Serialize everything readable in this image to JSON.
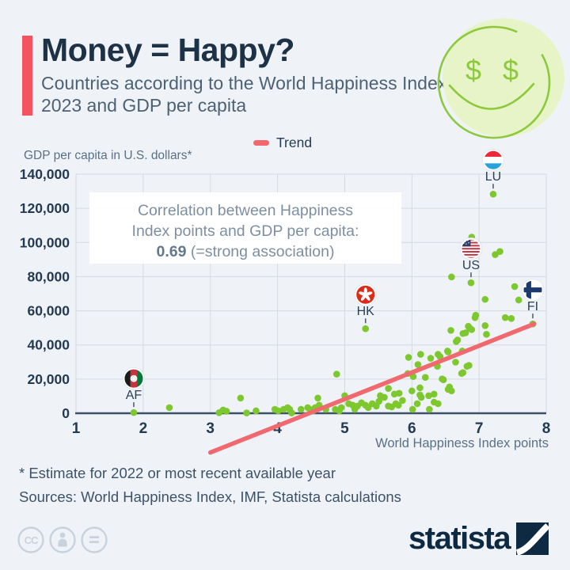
{
  "header": {
    "title": "Money = Happy?",
    "subtitle": "Countries according to the World Happiness Index 2023 and GDP per capita"
  },
  "footnotes": {
    "estimate": "* Estimate for 2022 or most recent available year",
    "sources": "Sources: World Happiness Index, IMF, Statista calculations"
  },
  "branding": {
    "logo_text": "statista",
    "license_icons": [
      "cc-icon",
      "attribution-icon",
      "no-derivatives-icon"
    ]
  },
  "colors": {
    "background": "#eff3f7",
    "accent_red": "#f4545f",
    "trend_red": "#f0696e",
    "point_green": "#7dc72f",
    "smiley_fill": "#e7f4c8",
    "smiley_stroke": "#8dc93c",
    "navy_text": "#1d3247",
    "slate_text": "#4d6175",
    "grid": "#d4dae1",
    "axis": "#3c5168"
  },
  "chart_data": {
    "type": "scatter",
    "title": "Money = Happy?",
    "subtitle": "Countries according to the World Happiness Index 2023 and GDP per capita",
    "xlabel": "World Happiness Index points",
    "ylabel": "GDP per capita in U.S. dollars*",
    "xlim": [
      1,
      8
    ],
    "ylim": [
      0,
      140000
    ],
    "grid": true,
    "xticks": [
      1,
      2,
      3,
      4,
      5,
      6,
      7,
      8
    ],
    "yticks": [
      0,
      20000,
      40000,
      60000,
      80000,
      100000,
      120000,
      140000
    ],
    "ytick_labels": [
      "0",
      "20,000",
      "40,000",
      "60,000",
      "80,000",
      "100,000",
      "120,000",
      "140,000"
    ],
    "legend": [
      {
        "label": "Trend",
        "color": "#f0696e"
      }
    ],
    "point_color": "#7dc72f",
    "trend_color": "#f0696e",
    "trend_line": {
      "x": [
        3.0,
        7.82
      ],
      "y": [
        -23000,
        52300
      ]
    },
    "correlation": {
      "line1": "Correlation between Happiness",
      "line2": "Index points and GDP per capita:",
      "value": "0.69",
      "suffix": "(=strong association)"
    },
    "labeled_points": [
      {
        "code": "AF",
        "icon": "afghanistan-flag-icon",
        "x": 1.86,
        "y": 400
      },
      {
        "code": "HK",
        "icon": "hong-kong-flag-icon",
        "x": 5.31,
        "y": 49500
      },
      {
        "code": "US",
        "icon": "united-states-flag-icon",
        "x": 6.88,
        "y": 76400
      },
      {
        "code": "LU",
        "icon": "luxembourg-flag-icon",
        "x": 7.21,
        "y": 128300
      },
      {
        "code": "FI",
        "icon": "finland-flag-icon",
        "x": 7.8,
        "y": 52300
      }
    ],
    "points": [
      [
        1.86,
        400
      ],
      [
        2.39,
        3300
      ],
      [
        3.13,
        300
      ],
      [
        3.19,
        1900
      ],
      [
        3.24,
        1200
      ],
      [
        3.45,
        8900
      ],
      [
        3.54,
        200
      ],
      [
        3.68,
        1400
      ],
      [
        3.96,
        2300
      ],
      [
        4.01,
        1400
      ],
      [
        4.09,
        2300
      ],
      [
        4.15,
        3300
      ],
      [
        4.18,
        2300
      ],
      [
        4.21,
        200
      ],
      [
        4.35,
        2300
      ],
      [
        4.45,
        3300
      ],
      [
        4.48,
        2300
      ],
      [
        4.53,
        1400
      ],
      [
        4.56,
        3300
      ],
      [
        4.6,
        8900
      ],
      [
        4.62,
        4700
      ],
      [
        4.72,
        2300
      ],
      [
        4.86,
        2300
      ],
      [
        4.88,
        22900
      ],
      [
        4.92,
        1400
      ],
      [
        4.95,
        3300
      ],
      [
        5.0,
        10300
      ],
      [
        5.06,
        5600
      ],
      [
        5.12,
        4700
      ],
      [
        5.15,
        2300
      ],
      [
        5.19,
        4200
      ],
      [
        5.25,
        6100
      ],
      [
        5.31,
        4700
      ],
      [
        5.35,
        3300
      ],
      [
        5.41,
        5600
      ],
      [
        5.47,
        4200
      ],
      [
        5.31,
        49500
      ],
      [
        5.51,
        7000
      ],
      [
        5.53,
        10300
      ],
      [
        5.59,
        9300
      ],
      [
        5.65,
        14500
      ],
      [
        5.65,
        4200
      ],
      [
        5.7,
        3700
      ],
      [
        5.74,
        11200
      ],
      [
        5.76,
        5600
      ],
      [
        5.8,
        4700
      ],
      [
        5.81,
        11700
      ],
      [
        5.86,
        7500
      ],
      [
        5.94,
        23300
      ],
      [
        5.95,
        32700
      ],
      [
        6.0,
        13100
      ],
      [
        6.01,
        2300
      ],
      [
        6.02,
        21500
      ],
      [
        6.08,
        5600
      ],
      [
        6.09,
        28500
      ],
      [
        6.12,
        14900
      ],
      [
        6.12,
        10700
      ],
      [
        6.13,
        34500
      ],
      [
        6.14,
        9300
      ],
      [
        6.2,
        21000
      ],
      [
        6.25,
        10300
      ],
      [
        6.26,
        2300
      ],
      [
        6.28,
        32200
      ],
      [
        6.33,
        11200
      ],
      [
        6.33,
        6500
      ],
      [
        6.38,
        27500
      ],
      [
        6.39,
        34500
      ],
      [
        6.39,
        5600
      ],
      [
        6.42,
        33100
      ],
      [
        6.45,
        20100
      ],
      [
        6.47,
        19600
      ],
      [
        6.53,
        36400
      ],
      [
        6.54,
        35900
      ],
      [
        6.54,
        14000
      ],
      [
        6.56,
        15400
      ],
      [
        6.58,
        48500
      ],
      [
        6.59,
        79800
      ],
      [
        6.59,
        13100
      ],
      [
        6.65,
        29900
      ],
      [
        6.66,
        42000
      ],
      [
        6.68,
        42900
      ],
      [
        6.74,
        23300
      ],
      [
        6.75,
        36400
      ],
      [
        6.76,
        23800
      ],
      [
        6.76,
        46700
      ],
      [
        6.8,
        47100
      ],
      [
        6.82,
        27500
      ],
      [
        6.84,
        50900
      ],
      [
        6.85,
        28000
      ],
      [
        6.86,
        49900
      ],
      [
        6.88,
        76400
      ],
      [
        6.89,
        103100
      ],
      [
        6.89,
        49000
      ],
      [
        6.94,
        56000
      ],
      [
        6.95,
        57400
      ],
      [
        7.09,
        51300
      ],
      [
        7.09,
        66700
      ],
      [
        7.11,
        46200
      ],
      [
        7.21,
        128300
      ],
      [
        7.24,
        92900
      ],
      [
        7.31,
        94700
      ],
      [
        7.39,
        56000
      ],
      [
        7.48,
        55500
      ],
      [
        7.53,
        74200
      ],
      [
        7.59,
        66300
      ],
      [
        7.8,
        52300
      ]
    ]
  }
}
